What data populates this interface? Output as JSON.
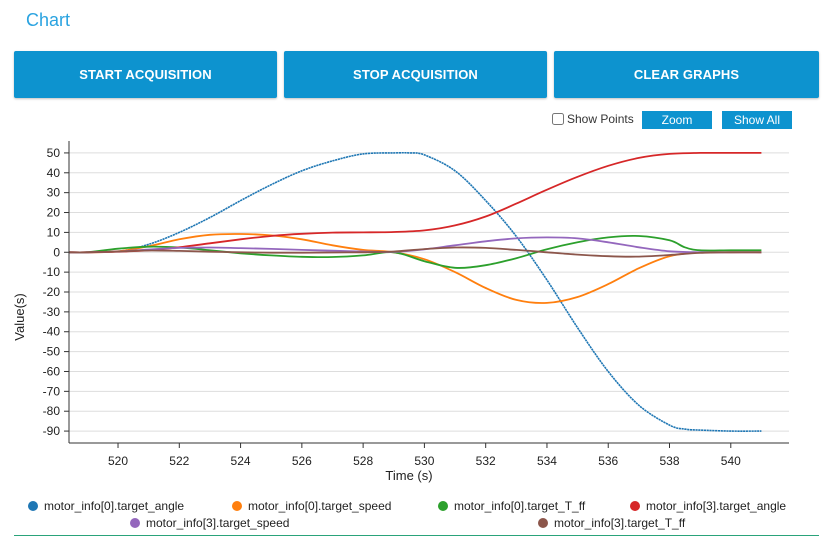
{
  "page": {
    "title": "Chart"
  },
  "toolbar": {
    "start_label": "START ACQUISITION",
    "stop_label": "STOP ACQUISITION",
    "clear_label": "CLEAR GRAPHS",
    "show_points_label": "Show Points",
    "zoom_label": "Zoom",
    "show_all_label": "Show All",
    "accent": "#0d93cf"
  },
  "chart_data": {
    "type": "line",
    "xlabel": "Time (s)",
    "ylabel": "Value(s)",
    "xlim": [
      518.4,
      541.9
    ],
    "ylim": [
      -96,
      56
    ],
    "xticks": [
      520,
      522,
      524,
      526,
      528,
      530,
      532,
      534,
      536,
      538,
      540
    ],
    "yticks": [
      50,
      40,
      30,
      20,
      10,
      0,
      -10,
      -20,
      -30,
      -40,
      -50,
      -60,
      -70,
      -80,
      -90
    ],
    "grid": true,
    "legend_position": "bottom",
    "series": [
      {
        "name": "motor_info[0].target_angle",
        "color": "#1f77b4",
        "stepped": true,
        "x": [
          518.4,
          520,
          521,
          522,
          523,
          524,
          525,
          526,
          527,
          528,
          529,
          529.5,
          530,
          531,
          532,
          533,
          534,
          535,
          536,
          537,
          538,
          538.5,
          539,
          540,
          541
        ],
        "y": [
          0,
          0.5,
          4,
          10,
          17.5,
          26,
          34,
          41,
          46,
          49.5,
          50,
          50,
          49,
          41,
          26,
          8,
          -14,
          -38,
          -60,
          -77,
          -87,
          -89,
          -89.5,
          -90,
          -90
        ]
      },
      {
        "name": "motor_info[0].target_speed",
        "color": "#ff7f0e",
        "x": [
          518.4,
          519,
          520,
          521,
          522,
          523,
          524,
          525,
          526,
          527,
          528,
          529,
          530,
          531,
          532,
          533,
          534,
          535,
          536,
          537,
          538,
          539,
          540,
          541
        ],
        "y": [
          0,
          0,
          0.5,
          3,
          6.5,
          8.8,
          9.2,
          8.5,
          6.5,
          3.5,
          1.2,
          0,
          -3.5,
          -10,
          -18,
          -24,
          -25.5,
          -22.5,
          -16,
          -8,
          -2,
          0,
          0,
          0
        ]
      },
      {
        "name": "motor_info[0].target_T_ff",
        "color": "#2ca02c",
        "x": [
          518.4,
          519,
          520,
          521,
          522,
          523,
          524,
          525,
          526,
          527,
          528,
          529,
          530,
          531,
          532,
          533,
          534,
          535,
          536,
          537,
          538,
          538.5,
          539,
          540,
          541
        ],
        "y": [
          0,
          0,
          1.8,
          2.8,
          2.4,
          1,
          -0.5,
          -1.6,
          -2.3,
          -2.4,
          -1.6,
          0,
          -4.5,
          -7.8,
          -6.5,
          -3,
          1.5,
          5,
          7.5,
          8.2,
          6,
          2.5,
          1,
          1,
          1
        ]
      },
      {
        "name": "motor_info[3].target_angle",
        "color": "#d62728",
        "x": [
          518.4,
          519,
          520,
          521,
          522,
          523,
          524,
          525,
          526,
          527,
          528,
          529,
          530,
          531,
          532,
          533,
          534,
          535,
          536,
          537,
          538,
          539,
          540,
          541
        ],
        "y": [
          0,
          0,
          0.3,
          1,
          2.5,
          4.5,
          6.5,
          8.2,
          9.3,
          9.9,
          10,
          10.2,
          11,
          13.5,
          18,
          24.5,
          31.5,
          38,
          43.5,
          47.5,
          49.5,
          50,
          50,
          50
        ]
      },
      {
        "name": "motor_info[3].target_speed",
        "color": "#9467bd",
        "x": [
          518.4,
          519,
          520,
          521,
          522,
          523,
          524,
          525,
          526,
          527,
          528,
          529,
          530,
          531,
          532,
          533,
          534,
          535,
          536,
          537,
          538,
          539,
          540,
          541
        ],
        "y": [
          0,
          0,
          0.4,
          1.4,
          2.2,
          2.4,
          2.1,
          1.7,
          1.2,
          0.8,
          0.4,
          0.2,
          1.5,
          3.5,
          5.5,
          7,
          7.5,
          7,
          5,
          2.5,
          0.5,
          0,
          0,
          0
        ]
      },
      {
        "name": "motor_info[3].target_T_ff",
        "color": "#8c564b",
        "x": [
          518.4,
          519,
          520,
          521,
          522,
          523,
          524,
          525,
          526,
          527,
          528,
          529,
          530,
          531,
          532,
          533,
          534,
          535,
          536,
          537,
          538,
          539,
          540,
          541
        ],
        "y": [
          0,
          0,
          0.4,
          0.9,
          0.7,
          0.3,
          0,
          -0.2,
          -0.2,
          -0.1,
          0,
          0.4,
          1.6,
          2.4,
          2.2,
          1.2,
          0,
          -1.2,
          -2,
          -2.2,
          -1.4,
          -0.3,
          0,
          0
        ]
      }
    ]
  }
}
